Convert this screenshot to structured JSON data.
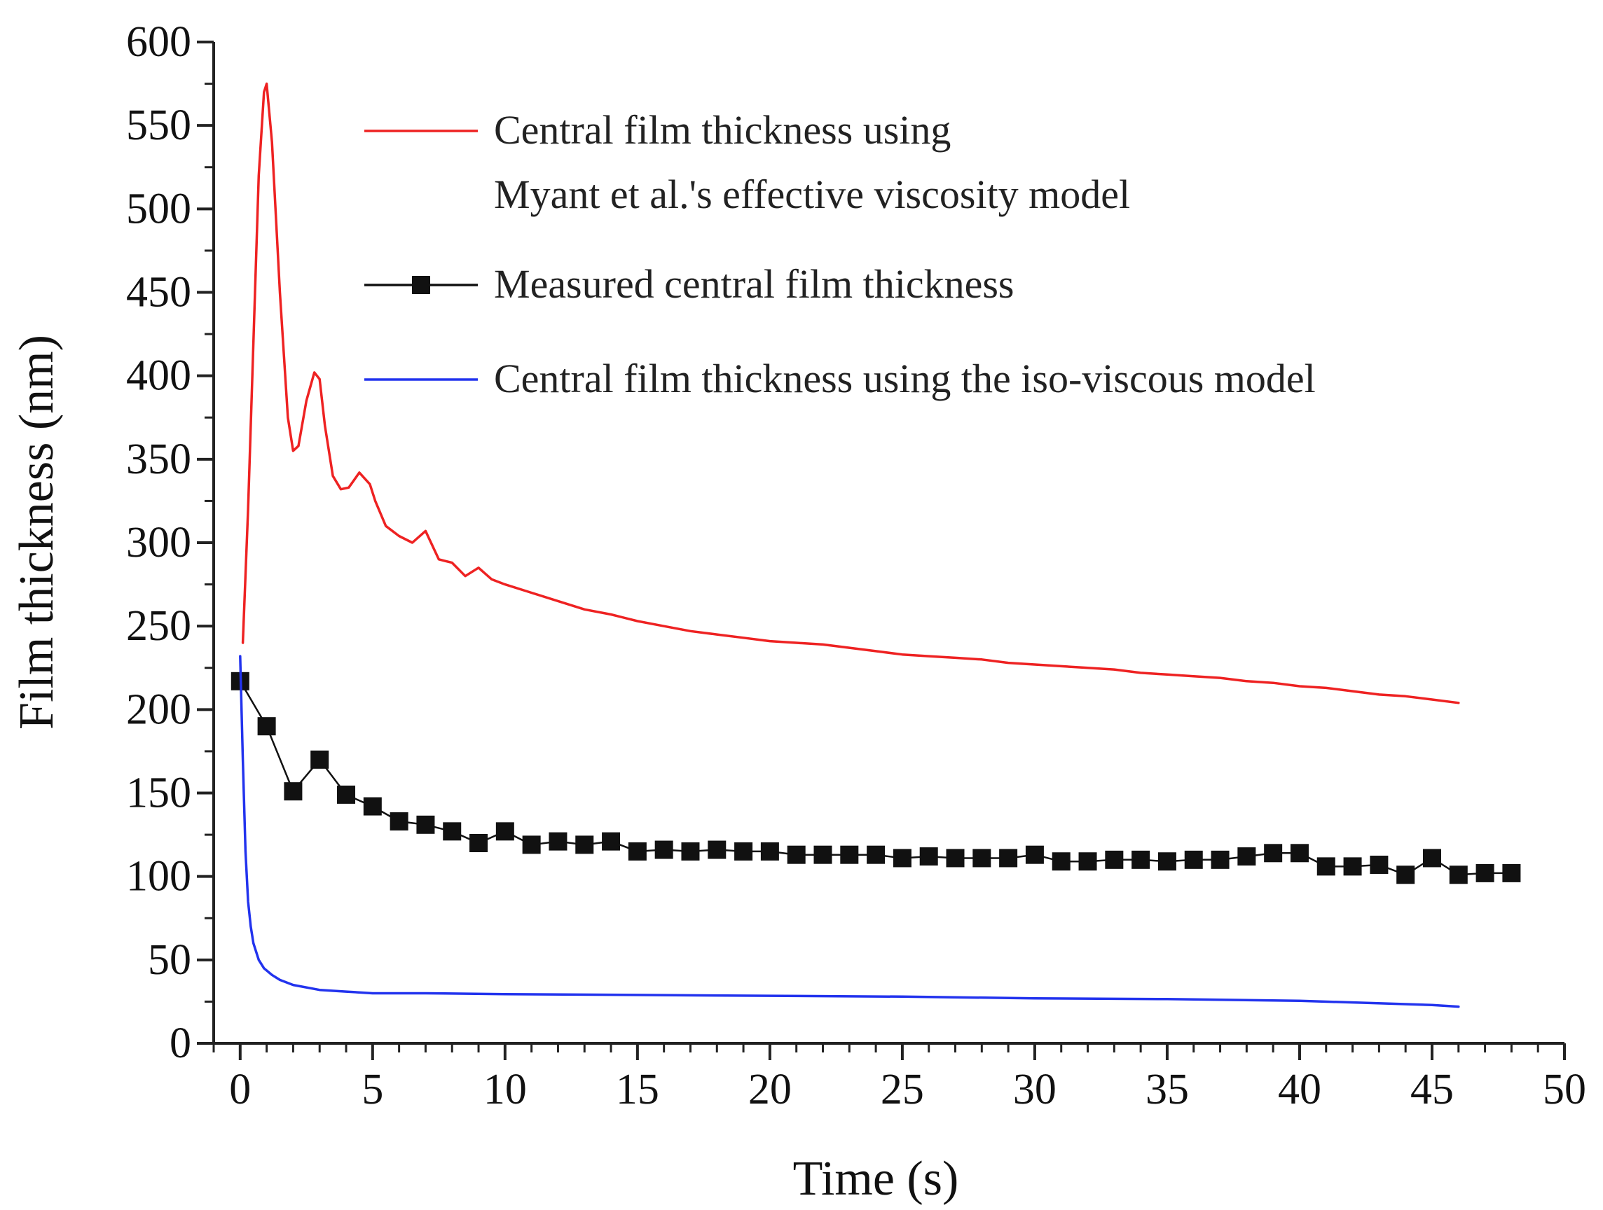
{
  "chart_data": {
    "type": "line",
    "title": "",
    "xlabel": "Time (s)",
    "ylabel": "Film thickness (nm)",
    "xlim": [
      -1,
      50
    ],
    "ylim": [
      0,
      600
    ],
    "xticks": [
      0,
      5,
      10,
      15,
      20,
      25,
      30,
      35,
      40,
      45,
      50
    ],
    "yticks": [
      0,
      50,
      100,
      150,
      200,
      250,
      300,
      350,
      400,
      450,
      500,
      550,
      600
    ],
    "xtick_labels": [
      "0",
      "5",
      "10",
      "15",
      "20",
      "25",
      "30",
      "35",
      "40",
      "45",
      "50"
    ],
    "ytick_labels": [
      "0",
      "50",
      "100",
      "150",
      "200",
      "250",
      "300",
      "350",
      "400",
      "450",
      "500",
      "550",
      "600"
    ],
    "grid": false,
    "legend_position": "top-right",
    "legend": [
      {
        "series": "effective",
        "lines": [
          "Central film thickness using",
          "Myant et al.'s effective viscosity model"
        ]
      },
      {
        "series": "measured",
        "lines": [
          "Measured central film thickness"
        ]
      },
      {
        "series": "isoviscous",
        "lines": [
          "Central film thickness using the iso-viscous model"
        ]
      }
    ],
    "series": [
      {
        "id": "effective",
        "name": "Central film thickness using Myant et al.'s effective viscosity model",
        "color": "#ee2222",
        "marker": "none",
        "x": [
          0.1,
          0.3,
          0.5,
          0.7,
          0.9,
          1.0,
          1.2,
          1.5,
          1.8,
          2.0,
          2.2,
          2.5,
          2.8,
          3.0,
          3.2,
          3.5,
          3.8,
          4.1,
          4.5,
          4.9,
          5.1,
          5.5,
          6.0,
          6.5,
          7.0,
          7.5,
          8.0,
          8.5,
          9.0,
          9.5,
          10,
          11,
          12,
          13,
          14,
          15,
          16,
          17,
          18,
          19,
          20,
          21,
          22,
          23,
          24,
          25,
          26,
          27,
          28,
          29,
          30,
          31,
          32,
          33,
          34,
          35,
          36,
          37,
          38,
          39,
          40,
          41,
          42,
          43,
          44,
          45,
          46
        ],
        "values": [
          240,
          320,
          420,
          520,
          570,
          575,
          540,
          450,
          375,
          355,
          358,
          385,
          402,
          398,
          370,
          340,
          332,
          333,
          342,
          335,
          325,
          310,
          304,
          300,
          307,
          290,
          288,
          280,
          285,
          278,
          275,
          270,
          265,
          260,
          257,
          253,
          250,
          247,
          245,
          243,
          241,
          240,
          239,
          237,
          235,
          233,
          232,
          231,
          230,
          228,
          227,
          226,
          225,
          224,
          222,
          221,
          220,
          219,
          217,
          216,
          214,
          213,
          211,
          209,
          208,
          206,
          204
        ]
      },
      {
        "id": "measured",
        "name": "Measured central film thickness",
        "color": "#111111",
        "marker": "square",
        "x": [
          0,
          1,
          2,
          3,
          4,
          5,
          6,
          7,
          8,
          9,
          10,
          11,
          12,
          13,
          14,
          15,
          16,
          17,
          18,
          19,
          20,
          21,
          22,
          23,
          24,
          25,
          26,
          27,
          28,
          29,
          30,
          31,
          32,
          33,
          34,
          35,
          36,
          37,
          38,
          39,
          40,
          41,
          42,
          43,
          44,
          45,
          46,
          47,
          48
        ],
        "values": [
          217,
          190,
          151,
          170,
          149,
          142,
          133,
          131,
          127,
          120,
          127,
          119,
          121,
          119,
          121,
          115,
          116,
          115,
          116,
          115,
          115,
          113,
          113,
          113,
          113,
          111,
          112,
          111,
          111,
          111,
          113,
          109,
          109,
          110,
          110,
          109,
          110,
          110,
          112,
          114,
          114,
          106,
          106,
          107,
          101,
          111,
          101,
          102,
          102
        ]
      },
      {
        "id": "isoviscous",
        "name": "Central film thickness using the iso-viscous model",
        "color": "#2233ee",
        "marker": "none",
        "x": [
          0.0,
          0.1,
          0.2,
          0.3,
          0.4,
          0.5,
          0.7,
          0.9,
          1.2,
          1.5,
          2.0,
          3.0,
          4.0,
          5.0,
          7.0,
          10,
          15,
          20,
          25,
          30,
          35,
          40,
          45,
          46
        ],
        "values": [
          232,
          170,
          115,
          85,
          70,
          60,
          50,
          45,
          41,
          38,
          35,
          32,
          31,
          30,
          30,
          29.5,
          29,
          28.5,
          28,
          27,
          26.5,
          25.5,
          23,
          22
        ]
      }
    ]
  }
}
